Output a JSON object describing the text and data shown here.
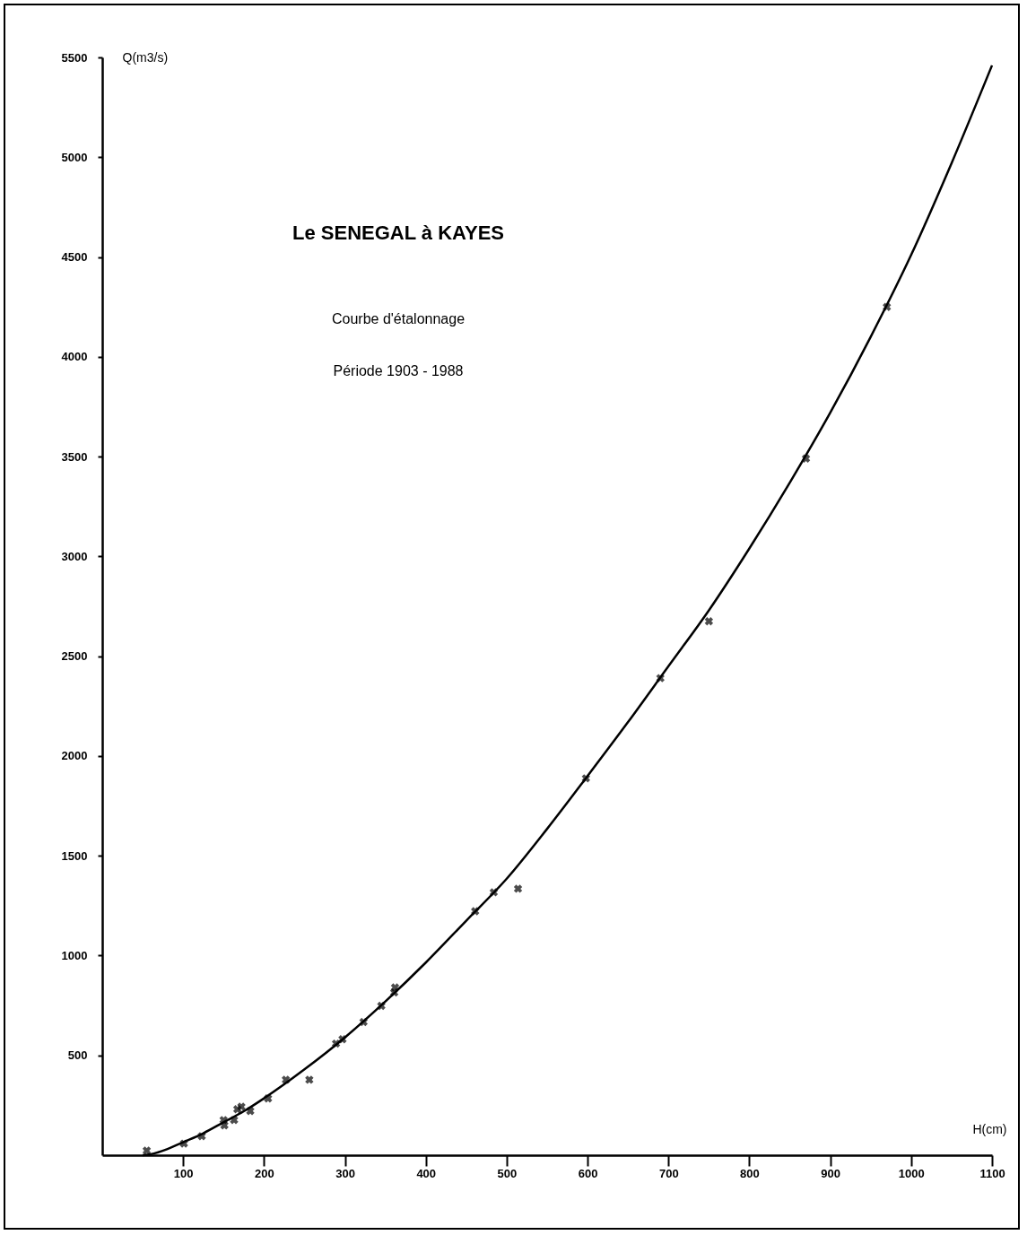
{
  "chart_data": {
    "type": "scatter",
    "title": "Le SENEGAL à KAYES",
    "subtitle": "Courbe d'étalonnage",
    "annotations": [
      "Période 1903 - 1988"
    ],
    "xlabel": "H(cm)",
    "ylabel": "Q(m3/s)",
    "xlim": [
      0,
      1100
    ],
    "ylim": [
      0,
      5500
    ],
    "xticks": [
      100,
      200,
      300,
      400,
      500,
      600,
      700,
      800,
      900,
      1000,
      1100
    ],
    "yticks": [
      500,
      1000,
      1500,
      2000,
      2500,
      3000,
      3500,
      4000,
      4500,
      5000,
      5500
    ],
    "grid": false,
    "marker": "cross",
    "series": [
      {
        "type": "line",
        "marker": "none",
        "color": "#000000",
        "x": [
          50,
          60,
          80,
          100,
          125,
          150,
          175,
          200,
          250,
          300,
          350,
          400,
          450,
          500,
          550,
          600,
          650,
          700,
          750,
          800,
          850,
          900,
          950,
          1000,
          1050,
          1100
        ],
        "values": [
          0,
          5,
          30,
          65,
          110,
          165,
          220,
          285,
          430,
          590,
          770,
          965,
          1175,
          1385,
          1635,
          1900,
          2170,
          2450,
          2730,
          3040,
          3370,
          3720,
          4100,
          4510,
          4970,
          5460
        ]
      },
      {
        "color": "#000000",
        "x": [
          55,
          101,
          123,
          150,
          151,
          163,
          167,
          172,
          183,
          205,
          227,
          256,
          289,
          297,
          323,
          345,
          361,
          362,
          461,
          484,
          514,
          598,
          690,
          750,
          870,
          970
        ],
        "values": [
          23,
          58,
          95,
          176,
          149,
          176,
          230,
          243,
          221,
          284,
          378,
          378,
          559,
          581,
          667,
          748,
          815,
          840,
          1222,
          1317,
          1335,
          1888,
          2390,
          2675,
          3490,
          4250
        ]
      }
    ]
  }
}
